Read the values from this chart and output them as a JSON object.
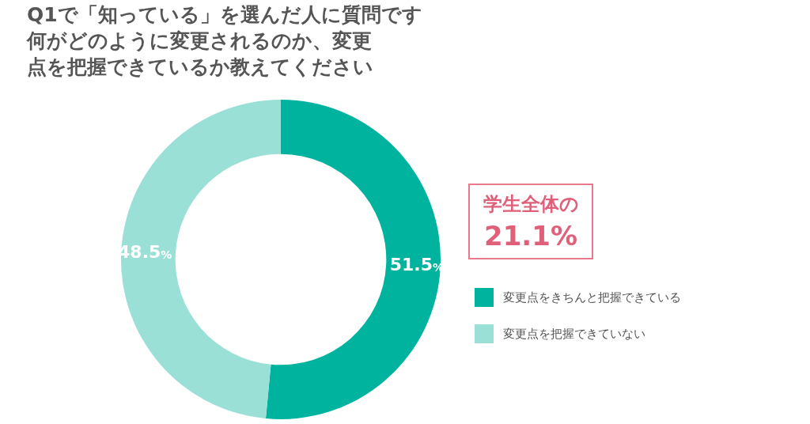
{
  "chart_data": {
    "type": "donut",
    "title": "Q1で「知っている」を選んだ人に質問です",
    "subtitle": "何がどのように変更されるのか、変更点を把握できているか教えてください",
    "categories": [
      "変更点をきちんと把握できている",
      "変更点を把握できていない"
    ],
    "values": [
      51.5,
      48.5
    ],
    "value_labels": [
      "51.5%",
      "48.5%"
    ],
    "colors": [
      "#00b39f",
      "#9ae0d6"
    ],
    "legend": "right",
    "annotations": [
      "学生全体の",
      "21.1%"
    ]
  }
}
